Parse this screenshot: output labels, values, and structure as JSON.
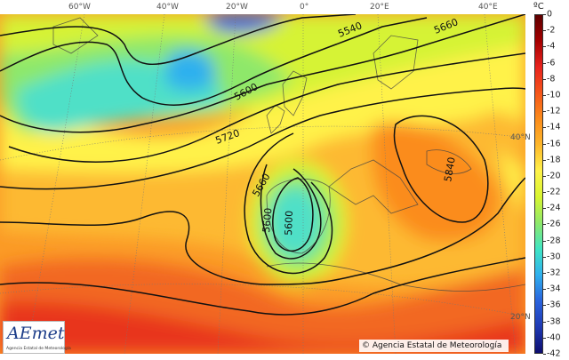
{
  "units": "ºC",
  "longitude_labels": [
    "60°W",
    "40°W",
    "20°W",
    "0°",
    "20°E",
    "40°E"
  ],
  "latitude_labels": [
    "40°N",
    "20°N"
  ],
  "colorbar": {
    "ticks": [
      "0",
      "-2",
      "-4",
      "-6",
      "-8",
      "-10",
      "-12",
      "-14",
      "-16",
      "-18",
      "-20",
      "-22",
      "-24",
      "-26",
      "-28",
      "-30",
      "-32",
      "-34",
      "-36",
      "-38",
      "-40",
      "-42"
    ],
    "color_stops": [
      "#5e0000",
      "#a50000",
      "#e8231e",
      "#f5561a",
      "#fb8c1b",
      "#fdb72b",
      "#fff24a",
      "#d8f530",
      "#8ee86a",
      "#3fe5c4",
      "#2fb0ee",
      "#2a63dd",
      "#1f3ab4",
      "#0d0d6e"
    ]
  },
  "contour_labels": [
    "5540",
    "5660",
    "5600",
    "5720",
    "5660",
    "5600",
    "5600",
    "5840"
  ],
  "logo": {
    "text": "AEmet",
    "subtitle": "Agencia Estatal de Meteorología"
  },
  "copyright": "© Agencia Estatal de Meteorología"
}
